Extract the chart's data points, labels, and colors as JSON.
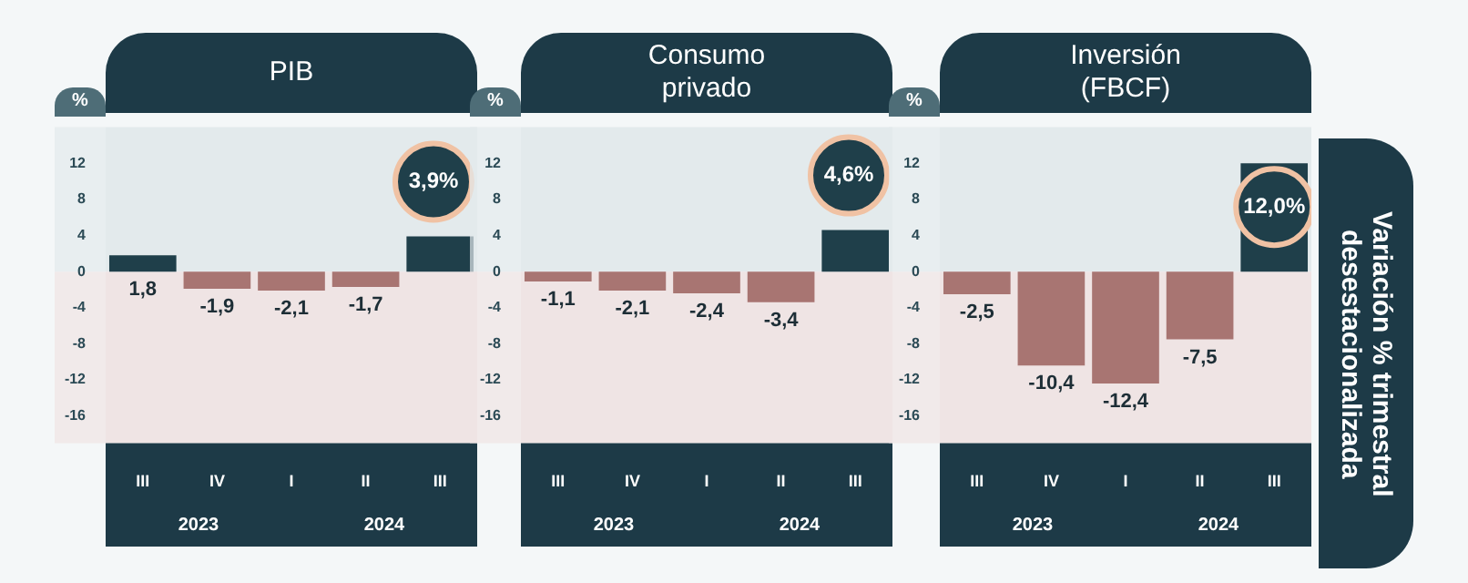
{
  "chart_data": [
    {
      "type": "bar",
      "title": "PIB",
      "ylabel": "%",
      "categories": [
        "III",
        "IV",
        "I",
        "II",
        "III"
      ],
      "values": [
        1.8,
        -1.9,
        -2.1,
        -1.7,
        3.9
      ],
      "colors": [
        "#1f3f4a",
        "#a87572",
        "#a87572",
        "#a87572",
        "#1f3f4a"
      ],
      "value_labels": [
        "1,8",
        "-1,9",
        "-2,1",
        "-1,7",
        "3,9%"
      ],
      "ylim": [
        -19,
        16
      ],
      "yticks": [
        -16,
        -12,
        -8,
        -4,
        0,
        4,
        8,
        12
      ],
      "bands": [
        {
          "axis": "y",
          "from": 0,
          "to": 16,
          "color": "#e3eaec"
        },
        {
          "axis": "y",
          "from": -19,
          "to": 0,
          "color": "#efe4e4"
        }
      ],
      "annotations": [
        "2023",
        "2024"
      ]
    },
    {
      "type": "bar",
      "title": "Consumo privado",
      "ylabel": "%",
      "categories": [
        "III",
        "IV",
        "I",
        "II",
        "III"
      ],
      "values": [
        -1.1,
        -2.1,
        -2.4,
        -3.4,
        4.6
      ],
      "colors": [
        "#a87572",
        "#a87572",
        "#a87572",
        "#a87572",
        "#1f3f4a"
      ],
      "value_labels": [
        "-1,1",
        "-2,1",
        "-2,4",
        "-3,4",
        "4,6%"
      ],
      "ylim": [
        -19,
        16
      ],
      "yticks": [
        -16,
        -12,
        -8,
        -4,
        0,
        4,
        8,
        12
      ],
      "bands": [
        {
          "axis": "y",
          "from": 0,
          "to": 16,
          "color": "#e3eaec"
        },
        {
          "axis": "y",
          "from": -19,
          "to": 0,
          "color": "#efe4e4"
        }
      ],
      "annotations": [
        "2023",
        "2024"
      ]
    },
    {
      "type": "bar",
      "title": "Inversión (FBCF)",
      "ylabel": "%",
      "y2label": "Variación % trimestral desestacionalizada",
      "categories": [
        "III",
        "IV",
        "I",
        "II",
        "III"
      ],
      "values": [
        -2.5,
        -10.4,
        -12.4,
        -7.5,
        12.0
      ],
      "colors": [
        "#a87572",
        "#a87572",
        "#a87572",
        "#a87572",
        "#1f3f4a"
      ],
      "value_labels": [
        "-2,5",
        "-10,4",
        "-12,4",
        "-7,5",
        "12,0%"
      ],
      "ylim": [
        -19,
        16
      ],
      "yticks": [
        -16,
        -12,
        -8,
        -4,
        0,
        4,
        8,
        12
      ],
      "bands": [
        {
          "axis": "y",
          "from": 0,
          "to": 16,
          "color": "#e3eaec"
        },
        {
          "axis": "y",
          "from": -19,
          "to": 0,
          "color": "#efe4e4"
        }
      ],
      "annotations": [
        "2023",
        "2024"
      ]
    }
  ]
}
